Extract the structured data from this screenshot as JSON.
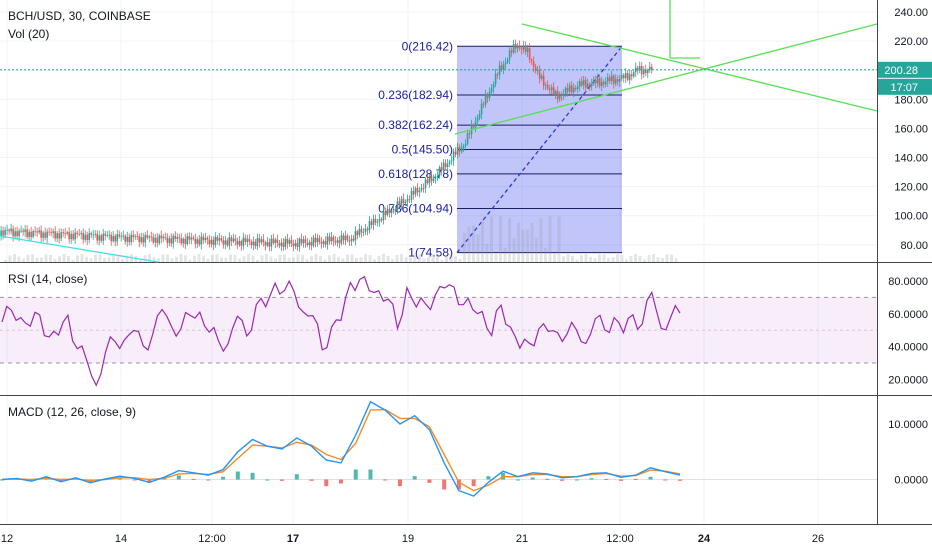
{
  "header": {
    "symbol_line": "BCH/USD, 30, COINBASE",
    "volume_line": "Vol (20)"
  },
  "price_badge": {
    "price": "200.28",
    "countdown": "17:07"
  },
  "chart_data": [
    {
      "type": "candlestick",
      "name": "price",
      "title": "BCH/USD, 30, COINBASE",
      "y_ticks": [
        "240.00",
        "220.00",
        "200.00",
        "180.00",
        "160.00",
        "140.00",
        "120.00",
        "100.00",
        "80.00"
      ],
      "ylim": [
        70,
        245
      ],
      "x_ticks": [
        "12",
        "14",
        "12:00",
        "17",
        "19",
        "21",
        "12:00",
        "24",
        "26"
      ],
      "last_price": 200.28,
      "approx_close_path": [
        [
          0,
          97
        ],
        [
          5,
          96
        ],
        [
          10,
          93
        ],
        [
          14,
          85
        ],
        [
          17,
          81
        ],
        [
          18,
          84
        ],
        [
          18.5,
          98
        ],
        [
          19,
          112
        ],
        [
          19.5,
          128
        ],
        [
          20,
          150
        ],
        [
          20.3,
          175
        ],
        [
          20.6,
          200
        ],
        [
          20.9,
          218
        ],
        [
          21.1,
          212
        ],
        [
          21.3,
          195
        ],
        [
          21.6,
          182
        ],
        [
          22,
          190
        ],
        [
          22.4,
          192
        ],
        [
          22.8,
          195
        ],
        [
          23,
          200
        ],
        [
          23.3,
          200.28
        ]
      ],
      "fibonacci_retracement": [
        {
          "label": "0(216.42)",
          "value": 216.42
        },
        {
          "label": "0.236(182.94)",
          "value": 182.94
        },
        {
          "label": "0.382(162.24)",
          "value": 162.24
        },
        {
          "label": "0.5(145.50)",
          "value": 145.5
        },
        {
          "label": "0.618(128.78)",
          "value": 128.78
        },
        {
          "label": "0.786(104.94)",
          "value": 104.94
        },
        {
          "label": "1(74.58)",
          "value": 74.58
        }
      ],
      "drawings": [
        "symmetrical triangle (green trendlines)",
        "cyan descending trendline",
        "dashed fibonacci trend line"
      ],
      "grid": true
    },
    {
      "type": "line",
      "name": "rsi",
      "title": "RSI (14, close)",
      "y_ticks": [
        "80.0000",
        "60.0000",
        "40.0000",
        "20.0000"
      ],
      "ylim": [
        12,
        88
      ],
      "band": [
        30,
        70
      ],
      "approx_values": [
        55,
        62,
        58,
        52,
        60,
        45,
        48,
        58,
        40,
        30,
        18,
        35,
        45,
        42,
        52,
        38,
        50,
        60,
        55,
        48,
        62,
        58,
        52,
        40,
        45,
        55,
        50,
        62,
        68,
        75,
        78,
        70,
        65,
        55,
        42,
        48,
        60,
        75,
        85,
        70,
        78,
        65,
        55,
        72,
        68,
        62,
        75,
        72,
        80,
        62,
        66,
        58,
        50,
        62,
        55,
        36,
        45,
        48,
        52,
        46,
        50,
        48,
        44,
        55,
        52,
        56,
        50,
        58,
        55,
        72,
        52,
        57,
        61
      ]
    },
    {
      "type": "line",
      "name": "macd",
      "title": "MACD (12, 26, close, 9)",
      "y_ticks": [
        "10.0000",
        "0.0000"
      ],
      "ylim": [
        -3,
        15
      ],
      "approx_macd": [
        0,
        0.2,
        -0.3,
        0.5,
        -0.4,
        0.3,
        -0.6,
        0.1,
        0.6,
        0.2,
        -0.5,
        0.4,
        1.6,
        1.2,
        0.8,
        1.8,
        5,
        7.2,
        6,
        5.5,
        7.5,
        6,
        3.5,
        3,
        8,
        14,
        12.5,
        10,
        11.5,
        9,
        3,
        -2,
        -3,
        -0.5,
        1.5,
        0.5,
        1.2,
        1,
        0.3,
        0.5,
        1.1,
        1.2,
        0.4,
        0.8,
        2.1,
        1.4,
        0.8
      ],
      "approx_signal": [
        0,
        0.1,
        0,
        0.2,
        0,
        0.1,
        -0.2,
        0,
        0.3,
        0.3,
        0,
        0.2,
        1,
        1.1,
        0.9,
        1.4,
        3.8,
        6.2,
        6,
        5.7,
        6.7,
        6.2,
        4.5,
        3.6,
        6.5,
        12.5,
        12.6,
        11,
        11,
        9.5,
        4.5,
        -0.5,
        -2,
        -1,
        0.5,
        0.5,
        0.9,
        0.9,
        0.5,
        0.5,
        0.9,
        1.1,
        0.6,
        0.7,
        1.7,
        1.5,
        1
      ]
    }
  ]
}
